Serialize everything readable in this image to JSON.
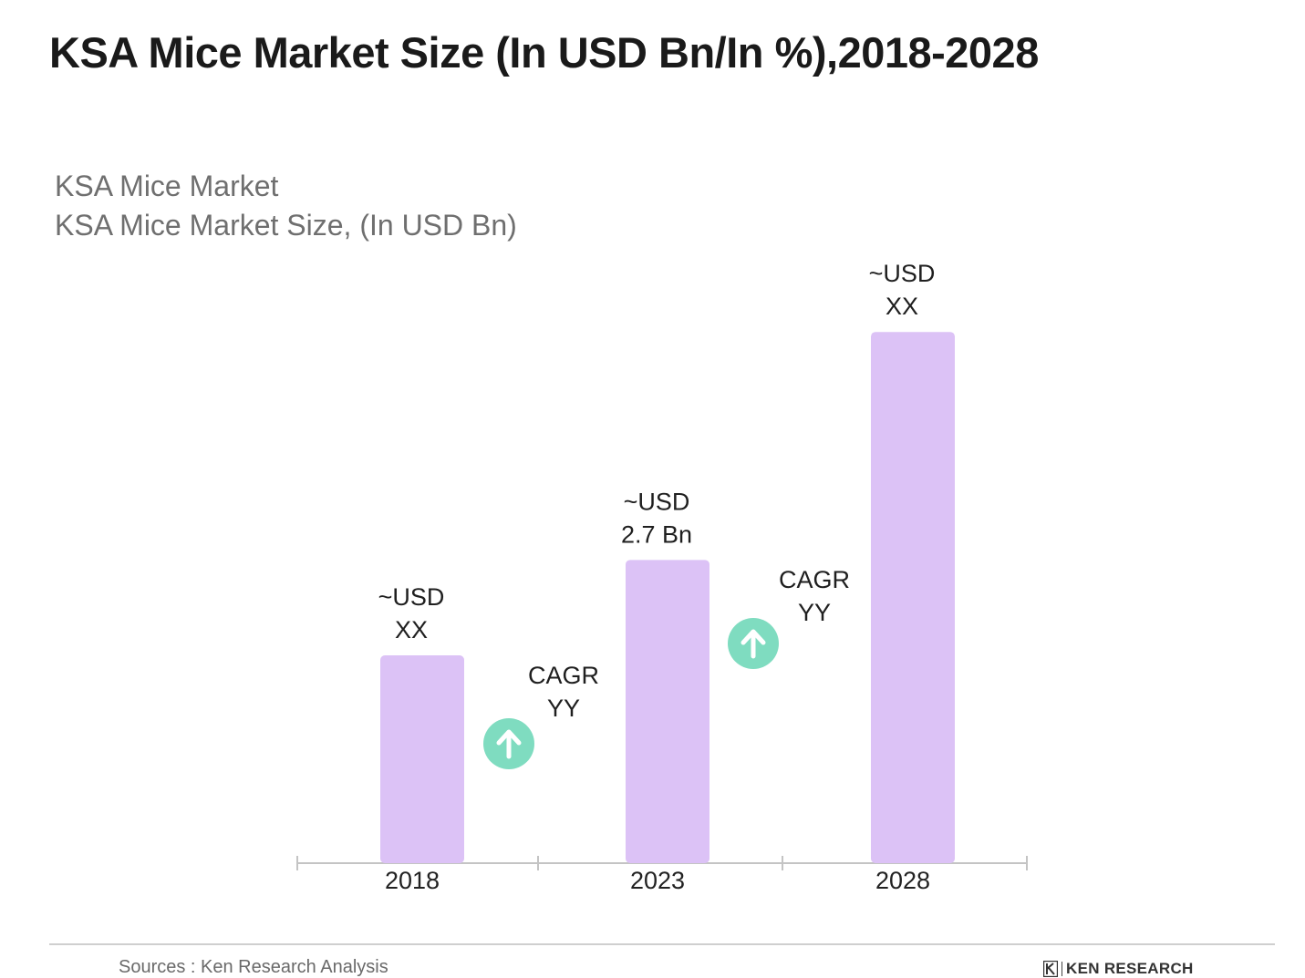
{
  "page": {
    "title": "KSA Mice Market Size (In USD Bn/In %),2018-2028",
    "subtitle_line1": "KSA Mice Market",
    "subtitle_line2": "KSA Mice Market Size, (In USD Bn)",
    "source": "Sources : Ken Research Analysis",
    "logo_text": "KEN RESEARCH"
  },
  "chart_data": {
    "type": "bar",
    "title": "KSA Mice Market Size (In USD Bn/In %),2018-2028",
    "ylabel": "KSA Mice Market Size, (In USD Bn)",
    "categories": [
      "2018",
      "2023",
      "2028"
    ],
    "values": [
      1.85,
      2.7,
      4.73
    ],
    "data_labels": [
      [
        "~USD",
        "XX"
      ],
      [
        "~USD",
        "2.7 Bn"
      ],
      [
        "~USD",
        "XX"
      ]
    ],
    "ylim": [
      0,
      5.6
    ],
    "annotations": [
      {
        "between": [
          "2018",
          "2023"
        ],
        "text": [
          "CAGR",
          "YY"
        ],
        "icon": "arrow-up-icon"
      },
      {
        "between": [
          "2023",
          "2028"
        ],
        "text": [
          "CAGR",
          "YY"
        ],
        "icon": "arrow-up-icon"
      }
    ],
    "grid": false,
    "legend": "none",
    "colors": {
      "bar": "#dcc2f6",
      "axis": "#c4c4c4",
      "cagr_circle": "#7fdcc0",
      "text": "#1f1f1f"
    }
  }
}
